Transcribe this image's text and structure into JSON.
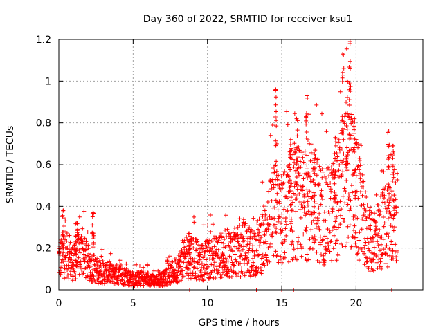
{
  "chart_data": {
    "type": "scatter",
    "title": "Day 360 of 2022, SRMTID for receiver ksu1",
    "xlabel": "GPS time / hours",
    "ylabel": "SRMTID / TECUs",
    "xlim": [
      0,
      24.5
    ],
    "ylim": [
      0,
      1.2
    ],
    "xticks": [
      0,
      5,
      10,
      15,
      20
    ],
    "xtick_labels": [
      "0",
      "5",
      "10",
      "15",
      "20"
    ],
    "yticks": [
      0,
      0.2,
      0.4,
      0.6,
      0.8,
      1.0,
      1.2
    ],
    "ytick_labels": [
      "0",
      "0.2",
      "0.4",
      "0.6",
      "0.8",
      "1",
      "1.2"
    ],
    "grid": true,
    "marker": "+",
    "series_color": "#ff0000",
    "series": [
      {
        "name": "SRMTID",
        "trend": [
          [
            0.0,
            0.14
          ],
          [
            0.5,
            0.16
          ],
          [
            1.0,
            0.12
          ],
          [
            1.5,
            0.17
          ],
          [
            2.0,
            0.12
          ],
          [
            2.5,
            0.09
          ],
          [
            3.0,
            0.08
          ],
          [
            3.5,
            0.07
          ],
          [
            4.0,
            0.07
          ],
          [
            4.5,
            0.06
          ],
          [
            5.0,
            0.05
          ],
          [
            5.5,
            0.05
          ],
          [
            6.0,
            0.05
          ],
          [
            6.5,
            0.04
          ],
          [
            7.0,
            0.05
          ],
          [
            7.5,
            0.07
          ],
          [
            8.0,
            0.1
          ],
          [
            8.5,
            0.14
          ],
          [
            9.0,
            0.16
          ],
          [
            9.5,
            0.12
          ],
          [
            10.0,
            0.14
          ],
          [
            10.5,
            0.15
          ],
          [
            11.0,
            0.16
          ],
          [
            11.5,
            0.17
          ],
          [
            12.0,
            0.17
          ],
          [
            12.5,
            0.19
          ],
          [
            13.0,
            0.17
          ],
          [
            13.5,
            0.2
          ],
          [
            14.0,
            0.27
          ],
          [
            14.5,
            0.35
          ],
          [
            15.0,
            0.32
          ],
          [
            15.5,
            0.36
          ],
          [
            16.0,
            0.4
          ],
          [
            16.5,
            0.38
          ],
          [
            17.0,
            0.42
          ],
          [
            17.5,
            0.36
          ],
          [
            18.0,
            0.33
          ],
          [
            18.5,
            0.36
          ],
          [
            19.0,
            0.45
          ],
          [
            19.5,
            0.55
          ],
          [
            20.0,
            0.42
          ],
          [
            20.5,
            0.3
          ],
          [
            21.0,
            0.22
          ],
          [
            21.5,
            0.25
          ],
          [
            22.0,
            0.3
          ],
          [
            22.5,
            0.35
          ],
          [
            22.8,
            0.3
          ]
        ],
        "peaks": [
          [
            0.3,
            0.38
          ],
          [
            1.2,
            0.32
          ],
          [
            2.3,
            0.37
          ],
          [
            8.8,
            0.27
          ],
          [
            14.6,
            0.96
          ],
          [
            15.6,
            0.72
          ],
          [
            16.0,
            0.82
          ],
          [
            16.7,
            0.93
          ],
          [
            17.2,
            0.65
          ],
          [
            18.6,
            0.73
          ],
          [
            19.1,
            1.13
          ],
          [
            19.4,
            1.0
          ],
          [
            19.6,
            1.19
          ],
          [
            19.9,
            0.82
          ],
          [
            22.2,
            0.76
          ],
          [
            22.5,
            0.69
          ]
        ],
        "zero_marks_x": [
          8.8,
          13.3,
          15.0,
          15.8,
          22.4
        ]
      }
    ]
  }
}
